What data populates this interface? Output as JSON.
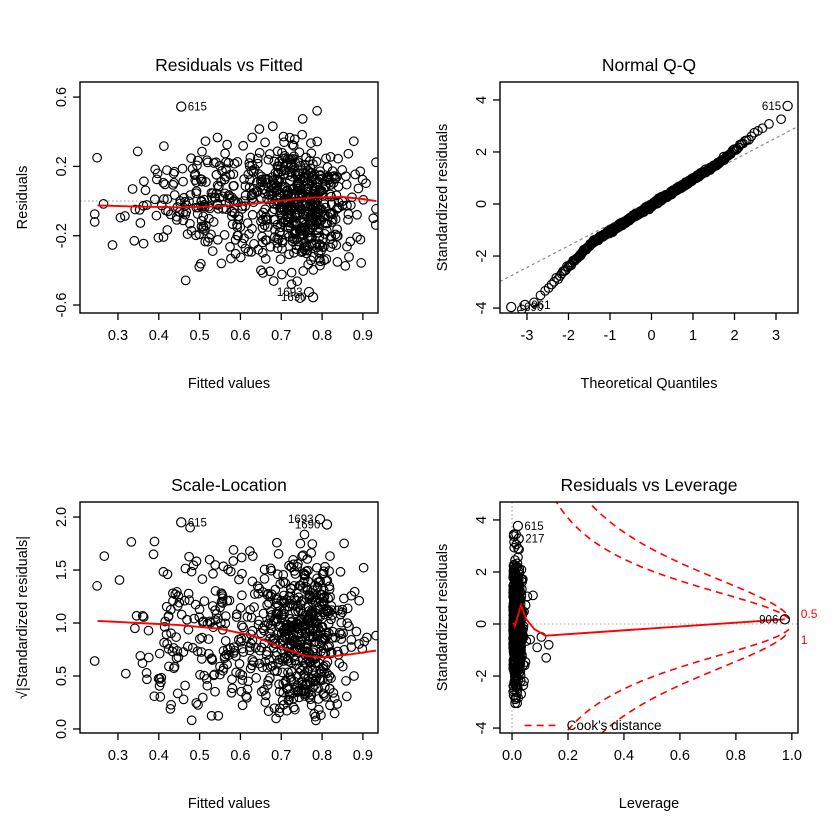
{
  "figure": {
    "description": "R lm() regression diagnostic plots, 2x2 grid",
    "colors": {
      "points": "#000000",
      "smoother": "#ff0000",
      "reference": "#a6a6a6",
      "qq_line": "#8a8a8a",
      "frame": "#000000",
      "cooks": "#ff0000"
    }
  },
  "chart_data": [
    {
      "id": "residuals-vs-fitted",
      "type": "scatter",
      "title": "Residuals vs Fitted",
      "xlabel": "Fitted values",
      "ylabel": "Residuals",
      "xlim": [
        0.207,
        0.937
      ],
      "ylim": [
        -0.646,
        0.687
      ],
      "x_ticks": [
        0.3,
        0.4,
        0.5,
        0.6,
        0.7,
        0.8,
        0.9
      ],
      "x_tick_labels": [
        "0.3",
        "0.4",
        "0.5",
        "0.6",
        "0.7",
        "0.8",
        "0.9"
      ],
      "y_ticks": [
        0.6,
        0.2,
        -0.2,
        -0.6
      ],
      "y_tick_labels": [
        "0.6",
        "0.2",
        "-0.2",
        "-0.6"
      ],
      "grid": false,
      "ref_lines": [
        {
          "o": "h",
          "at": 0
        }
      ],
      "smoother": [
        [
          0.25,
          -0.025
        ],
        [
          0.35,
          -0.032
        ],
        [
          0.45,
          -0.036
        ],
        [
          0.55,
          -0.03
        ],
        [
          0.62,
          -0.018
        ],
        [
          0.7,
          0.002
        ],
        [
          0.78,
          0.02
        ],
        [
          0.85,
          0.024
        ],
        [
          0.9,
          0.012
        ],
        [
          0.932,
          0.0
        ]
      ],
      "scatter": {
        "kind": "fitted_resid",
        "n": 720,
        "seed": 101,
        "x_mix": [
          {
            "w": 0.58,
            "m": 0.765,
            "s": 0.055
          },
          {
            "w": 0.42,
            "m": 0.585,
            "s": 0.125
          }
        ],
        "x_range": [
          0.243,
          0.932
        ],
        "y_mean": -0.01,
        "y_sd": 0.17,
        "y_range": [
          -0.565,
          0.56
        ]
      },
      "extra_points": [
        [
          0.249,
          0.25
        ]
      ],
      "labeled_points": [
        {
          "id": "615",
          "x": 0.455,
          "y": 0.545,
          "side": "right"
        },
        {
          "id": "1693",
          "x": 0.768,
          "y": -0.525,
          "side": "left"
        },
        {
          "id": "1690",
          "x": 0.778,
          "y": -0.555,
          "side": "left"
        }
      ]
    },
    {
      "id": "normal-qq",
      "type": "scatter",
      "title": "Normal Q-Q",
      "xlabel": "Theoretical Quantiles",
      "ylabel": "Standardized residuals",
      "xlim": [
        -3.65,
        3.53
      ],
      "ylim": [
        -4.19,
        4.69
      ],
      "x_ticks": [
        -3,
        -2,
        -1,
        0,
        1,
        2,
        3
      ],
      "x_tick_labels": [
        "-3",
        "-2",
        "-1",
        "0",
        "1",
        "2",
        "3"
      ],
      "y_ticks": [
        4,
        2,
        0,
        -2,
        -4
      ],
      "y_tick_labels": [
        "4",
        "2",
        "0",
        "-2",
        "-4"
      ],
      "grid": false,
      "qq_line": {
        "slope": 0.83,
        "intercept": 0.05
      },
      "scatter": {
        "kind": "qq",
        "n": 700,
        "seed": 303,
        "slope_mid": 1.0,
        "intercept": -0.05,
        "left_knot": -1.4,
        "left_slope": 1.6,
        "right_knot": 1.6,
        "right_slope": 1.3,
        "s_min": -4.05,
        "s_max": 3.26,
        "noise": 0.03
      },
      "labeled_points": [
        {
          "id": "615",
          "x": 3.28,
          "y": 3.77,
          "side": "left"
        },
        {
          "id": "1690",
          "x": -3.38,
          "y": -3.96,
          "side": "right"
        },
        {
          "id": "961",
          "x": -3.05,
          "y": -3.88,
          "side": "right"
        }
      ]
    },
    {
      "id": "scale-location",
      "type": "scatter",
      "title": "Scale-Location",
      "xlabel": "Fitted values",
      "ylabel": "√|Standardized residuals|",
      "xlim": [
        0.207,
        0.937
      ],
      "ylim": [
        -0.038,
        2.142
      ],
      "x_ticks": [
        0.3,
        0.4,
        0.5,
        0.6,
        0.7,
        0.8,
        0.9
      ],
      "x_tick_labels": [
        "0.3",
        "0.4",
        "0.5",
        "0.6",
        "0.7",
        "0.8",
        "0.9"
      ],
      "y_ticks": [
        2.0,
        1.5,
        1.0,
        0.5,
        0.0
      ],
      "y_tick_labels": [
        "2.0",
        "1.5",
        "1.0",
        "0.5",
        "0.0"
      ],
      "grid": false,
      "smoother": [
        [
          0.25,
          1.02
        ],
        [
          0.35,
          1.0
        ],
        [
          0.45,
          0.98
        ],
        [
          0.55,
          0.945
        ],
        [
          0.63,
          0.88
        ],
        [
          0.7,
          0.77
        ],
        [
          0.76,
          0.69
        ],
        [
          0.8,
          0.675
        ],
        [
          0.87,
          0.705
        ],
        [
          0.932,
          0.74
        ]
      ],
      "scatter": {
        "kind": "fitted_sqrt",
        "n": 720,
        "seed": 202,
        "x_mix": [
          {
            "w": 0.58,
            "m": 0.765,
            "s": 0.055
          },
          {
            "w": 0.42,
            "m": 0.585,
            "s": 0.125
          }
        ],
        "x_range": [
          0.243,
          0.932
        ],
        "y_sd": 1.12,
        "y_max": 1.9
      },
      "extra_points": [
        [
          0.249,
          1.35
        ]
      ],
      "labeled_points": [
        {
          "id": "615",
          "x": 0.455,
          "y": 1.95,
          "side": "right"
        },
        {
          "id": "1693",
          "x": 0.795,
          "y": 1.98,
          "side": "left"
        },
        {
          "id": "1690",
          "x": 0.812,
          "y": 1.93,
          "side": "left"
        }
      ]
    },
    {
      "id": "residuals-vs-leverage",
      "type": "scatter",
      "title": "Residuals vs Leverage",
      "xlabel": "Leverage",
      "ylabel": "Standardized residuals",
      "xlim": [
        -0.043,
        1.022
      ],
      "ylim": [
        -4.19,
        4.69
      ],
      "x_ticks": [
        0.0,
        0.2,
        0.4,
        0.6,
        0.8,
        1.0
      ],
      "x_tick_labels": [
        "0.0",
        "0.2",
        "0.4",
        "0.6",
        "0.8",
        "1.0"
      ],
      "y_ticks": [
        4,
        2,
        0,
        -2,
        -4
      ],
      "y_tick_labels": [
        "4",
        "2",
        "0",
        "-2",
        "-4"
      ],
      "grid": false,
      "ref_lines": [
        {
          "o": "h",
          "at": 0
        },
        {
          "o": "v",
          "at": 0
        }
      ],
      "smoother": [
        [
          0.004,
          0.05
        ],
        [
          0.01,
          -0.08
        ],
        [
          0.02,
          0.28
        ],
        [
          0.032,
          0.72
        ],
        [
          0.05,
          0.2
        ],
        [
          0.08,
          -0.2
        ],
        [
          0.12,
          -0.45
        ],
        [
          0.975,
          0.18
        ]
      ],
      "cooks": {
        "levels": [
          {
            "label": "0.5",
            "k": 4.15,
            "label_x": 1.032,
            "label_y": 0.38
          },
          {
            "label": "1",
            "k": 8.3,
            "label_x": 1.032,
            "label_y": -0.62
          }
        ]
      },
      "legend": {
        "label": "Cook's distance",
        "line_x": [
          0.045,
          0.155
        ],
        "line_y": -3.9,
        "label_x": 0.195,
        "label_y": -3.9
      },
      "scatter": {
        "kind": "leverage",
        "n": 640,
        "seed": 404,
        "h_base": 0.004,
        "h_sd": 0.0155,
        "h_max": 0.055,
        "extra_h": [
          0.065,
          0.075,
          0.09,
          0.105,
          0.122,
          0.131
        ],
        "extra_y": [
          -0.6,
          1.1,
          -0.9,
          -0.5,
          -1.3,
          -0.8
        ],
        "y_sd": 1.25,
        "y_range": [
          -3.05,
          3.45
        ]
      },
      "labeled_points": [
        {
          "id": "615",
          "x": 0.021,
          "y": 3.77,
          "side": "right"
        },
        {
          "id": "217",
          "x": 0.024,
          "y": 3.28,
          "side": "right"
        },
        {
          "id": "906",
          "x": 0.975,
          "y": 0.18,
          "side": "left"
        }
      ]
    }
  ]
}
